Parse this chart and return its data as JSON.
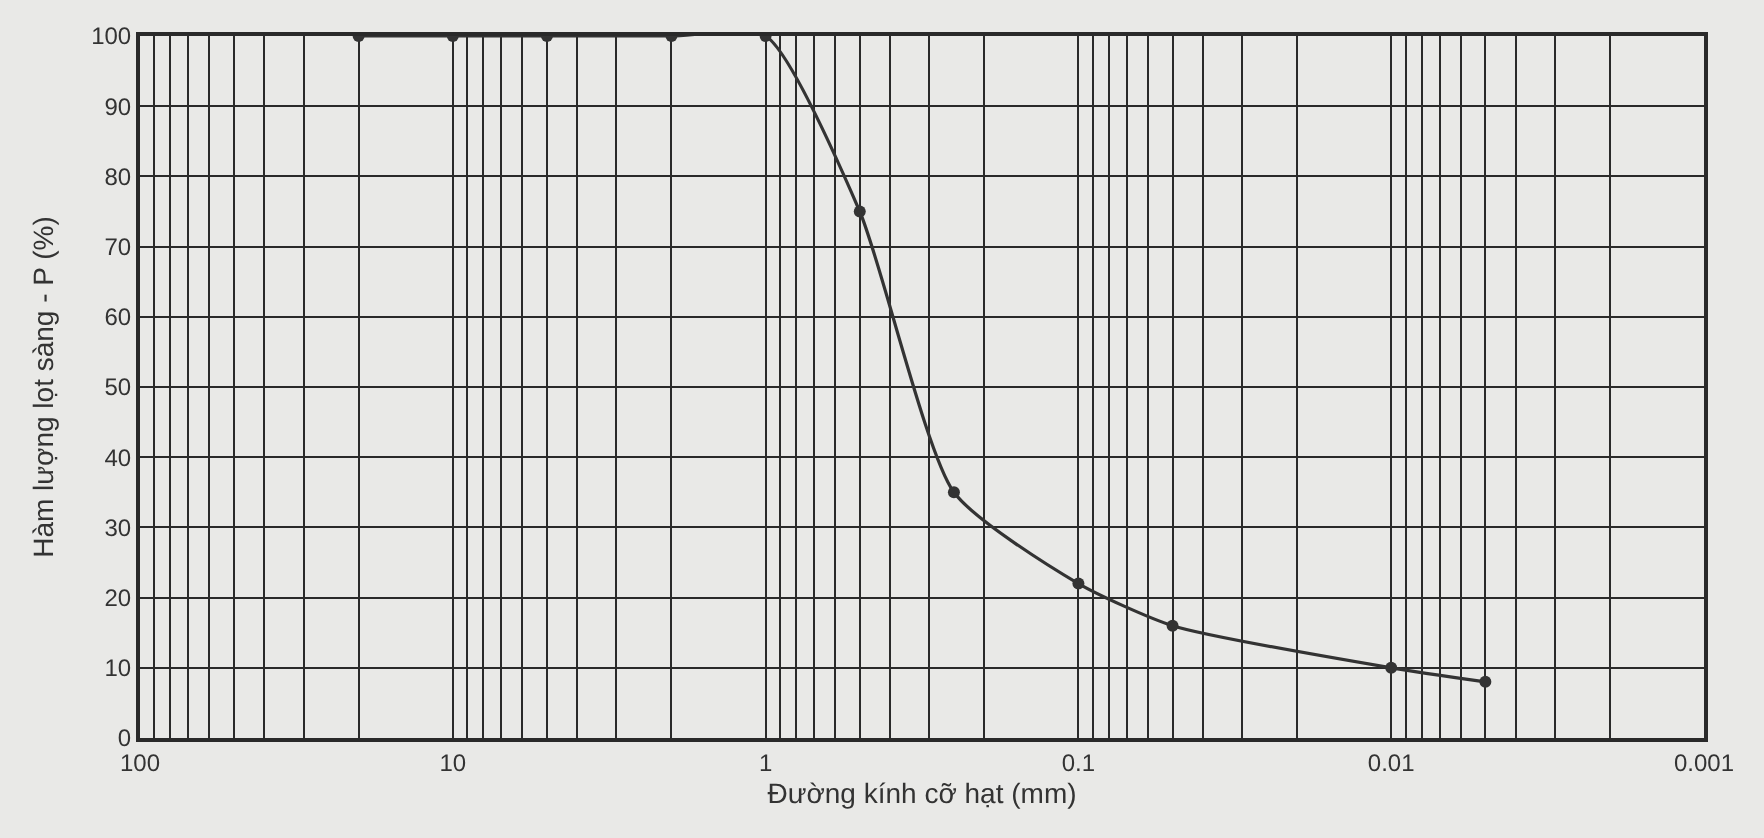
{
  "chart_data": {
    "type": "line",
    "xlabel": "Đường kính cỡ hạt (mm)",
    "ylabel": "Hàm lượng lọt sàng - P (%)",
    "log": "x",
    "grid": true,
    "marker": "circle",
    "line_style": "solid",
    "xlim": [
      100,
      0.001
    ],
    "xticks": [
      100,
      10,
      1,
      0.1,
      0.01,
      0.001
    ],
    "ylim": [
      0,
      100
    ],
    "yticks": [
      0,
      10,
      20,
      30,
      40,
      50,
      60,
      70,
      80,
      90,
      100
    ],
    "x": [
      20,
      10,
      5,
      2,
      1,
      0.5,
      0.25,
      0.1,
      0.05,
      0.01,
      0.005
    ],
    "series": [
      {
        "color": "#333333",
        "values": [
          100,
          100,
          100,
          100,
          100,
          75,
          35,
          22,
          16,
          10,
          8
        ]
      }
    ]
  }
}
